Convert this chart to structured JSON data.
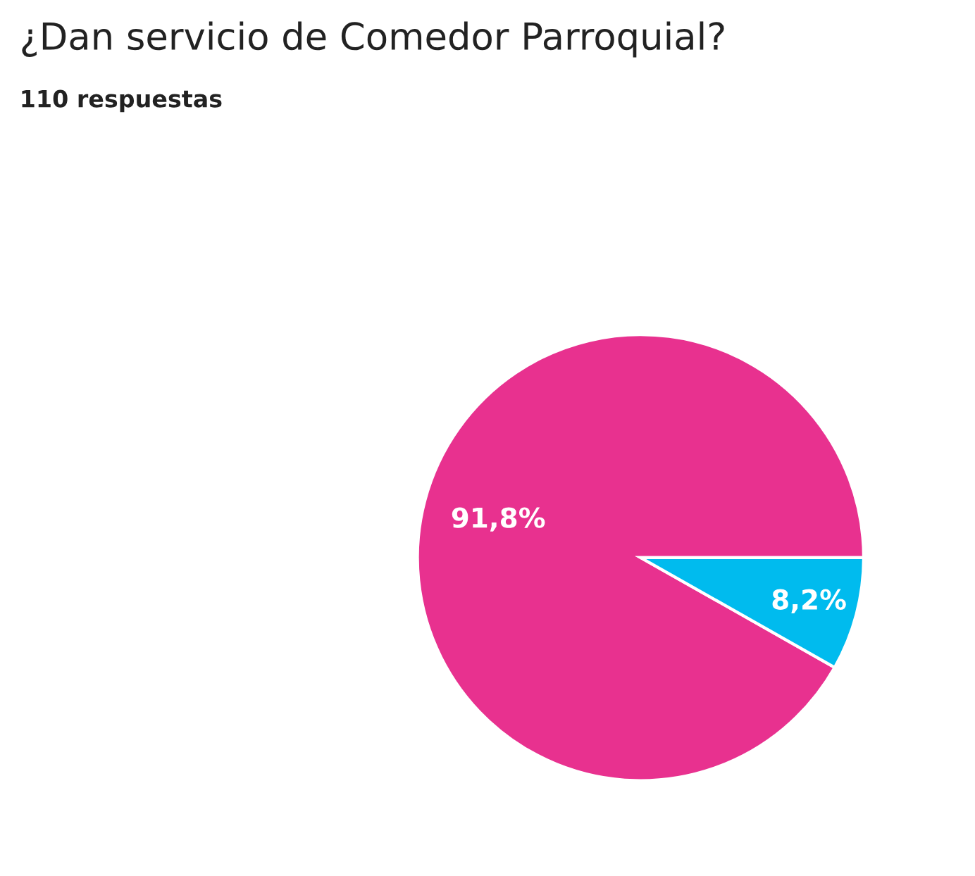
{
  "chart_data": {
    "type": "pie",
    "title": "¿Dan servicio de Comedor Parroquial?",
    "subtitle": "110 respuestas",
    "categories": [
      null,
      null
    ],
    "values": [
      91.8,
      8.2
    ],
    "colors": [
      "#e8318f",
      "#00bbee"
    ],
    "value_labels": [
      "91,8%",
      "8,2%"
    ],
    "legend": false
  }
}
